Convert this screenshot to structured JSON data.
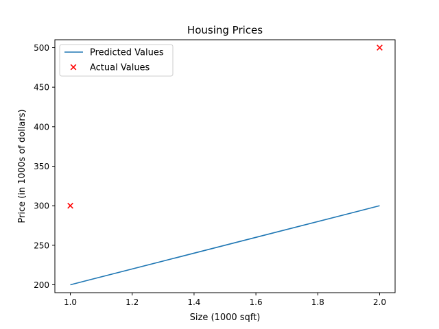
{
  "chart_data": {
    "type": "line",
    "title": "Housing Prices",
    "xlabel": "Size (1000 sqft)",
    "ylabel": "Price (in 1000s of dollars)",
    "xlim": [
      0.95,
      2.05
    ],
    "ylim": [
      190,
      510
    ],
    "x_ticks": [
      1.0,
      1.2,
      1.4,
      1.6,
      1.8,
      2.0
    ],
    "x_tick_labels": [
      "1.0",
      "1.2",
      "1.4",
      "1.6",
      "1.8",
      "2.0"
    ],
    "y_ticks": [
      200,
      250,
      300,
      350,
      400,
      450,
      500
    ],
    "y_tick_labels": [
      "200",
      "250",
      "300",
      "350",
      "400",
      "450",
      "500"
    ],
    "grid": false,
    "legend_position": "top-left",
    "series": [
      {
        "name": "Predicted Values",
        "kind": "line",
        "color": "#1f77b4",
        "x": [
          1.0,
          2.0
        ],
        "y": [
          200,
          300
        ]
      },
      {
        "name": "Actual Values",
        "kind": "scatter",
        "marker": "x",
        "color": "#ff0000",
        "x": [
          1.0,
          2.0
        ],
        "y": [
          300,
          500
        ]
      }
    ]
  }
}
